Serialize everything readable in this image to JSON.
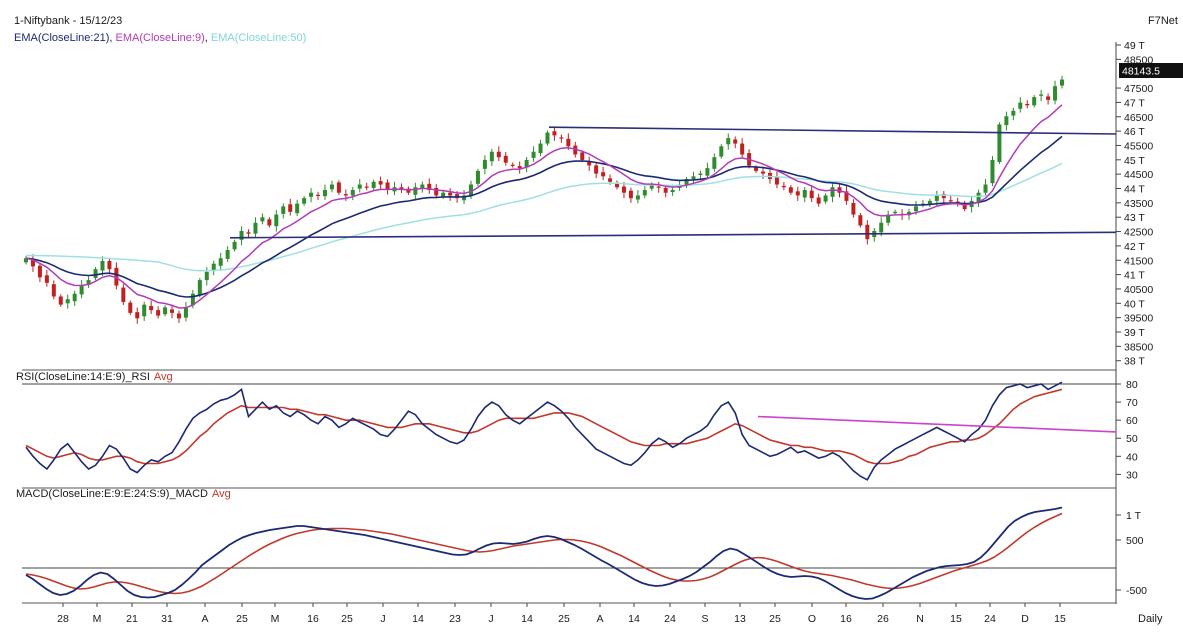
{
  "header": {
    "symbol": "1-Niftybank - 15/12/23",
    "brand": "F7Net",
    "legend": [
      {
        "text": "EMA(CloseLine:21)",
        "color": "#1c2a73"
      },
      {
        "text": ", ",
        "color": "#1a1a1a"
      },
      {
        "text": "EMA(CloseLine:9)",
        "color": "#b23bb8"
      },
      {
        "text": ", ",
        "color": "#1a1a1a"
      },
      {
        "text": "EMA(CloseLine:50)",
        "color": "#7fd6dc"
      }
    ]
  },
  "colors": {
    "up": "#2e8b2e",
    "down": "#c02020",
    "ema21": "#1c2a73",
    "ema9": "#b23bb8",
    "ema50": "#9fe0e4",
    "trendline": "#2b2f7a",
    "rsi": "#1c2a73",
    "rsi_avg": "#c0392b",
    "rsi_trend": "#cc44cc",
    "macd": "#1c2a73",
    "macd_avg": "#c0392b"
  },
  "chart_data": [
    {
      "type": "candlestick",
      "panel": "price",
      "yticks": [
        "49 T",
        "48500",
        "48143.5",
        "47500",
        "47 T",
        "46500",
        "46 T",
        "45500",
        "45 T",
        "44500",
        "44 T",
        "43500",
        "43 T",
        "42500",
        "42 T",
        "41500",
        "41 T",
        "40500",
        "40 T",
        "39500",
        "39 T",
        "38500",
        "38 T"
      ],
      "last_price": "48143.5",
      "ylim": [
        37800,
        49300
      ],
      "x_labels": [
        "28",
        "M",
        "21",
        "31",
        "A",
        "25",
        "M",
        "16",
        "25",
        "J",
        "14",
        "23",
        "J",
        "14",
        "25",
        "A",
        "14",
        "24",
        "S",
        "13",
        "25",
        "O",
        "16",
        "26",
        "N",
        "15",
        "24",
        "D",
        "15"
      ],
      "series_close": [
        41600,
        41300,
        40900,
        40700,
        40200,
        39900,
        40100,
        40300,
        40600,
        40800,
        41200,
        41500,
        41200,
        40600,
        40000,
        39600,
        39400,
        39900,
        39700,
        39500,
        39800,
        39600,
        39400,
        39800,
        40300,
        40800,
        41100,
        41400,
        41600,
        41900,
        42200,
        42600,
        42500,
        42900,
        43100,
        42800,
        43200,
        43500,
        43300,
        43600,
        43800,
        44000,
        43900,
        44100,
        44300,
        44000,
        43900,
        44100,
        44300,
        44200,
        44400,
        44300,
        44100,
        44200,
        44100,
        44000,
        44200,
        44300,
        44100,
        43900,
        44000,
        43900,
        43800,
        43900,
        44300,
        44800,
        45200,
        45500,
        45300,
        45100,
        45000,
        44900,
        45200,
        45500,
        45800,
        46200,
        46100,
        46000,
        45700,
        45400,
        45200,
        45000,
        44700,
        44600,
        44400,
        44200,
        44000,
        43800,
        43900,
        44100,
        44300,
        44200,
        44000,
        44100,
        44300,
        44500,
        44600,
        44700,
        44900,
        45300,
        45700,
        46000,
        45800,
        45400,
        45000,
        44800,
        44700,
        44500,
        44300,
        44200,
        44000,
        43900,
        44100,
        43800,
        43600,
        43900,
        44200,
        44000,
        43700,
        43200,
        42800,
        42300,
        42600,
        42900,
        43200,
        43300,
        43200,
        43300,
        43500,
        43600,
        43700,
        43900,
        43800,
        43700,
        43600,
        43400,
        43700,
        44000,
        44300,
        45200,
        46500,
        46800,
        47000,
        47300,
        47200,
        47500,
        47600,
        47400,
        47900,
        48143.5
      ],
      "ema_series": [
        "EMA(CloseLine:21)",
        "EMA(CloseLine:9)",
        "EMA(CloseLine:50)"
      ],
      "trendlines": [
        {
          "from": [
            "2023-07-25",
            46400
          ],
          "to": [
            "2023-12-15",
            46150
          ]
        },
        {
          "from": [
            "2023-04-05",
            42350
          ],
          "to": [
            "2023-12-15",
            42550
          ]
        }
      ]
    },
    {
      "type": "line",
      "panel": "rsi",
      "title": "RSI(CloseLine:14:E:9)_RSI",
      "avg_label": "Avg",
      "yticks": [
        "80",
        "70",
        "60",
        "50",
        "40",
        "30"
      ],
      "ylim": [
        25,
        84
      ],
      "series": [
        {
          "name": "RSI",
          "values": [
            45,
            40,
            36,
            33,
            38,
            44,
            47,
            42,
            37,
            33,
            35,
            40,
            46,
            44,
            39,
            33,
            31,
            35,
            38,
            37,
            40,
            42,
            48,
            55,
            61,
            64,
            66,
            69,
            71,
            72,
            74,
            77,
            62,
            66,
            70,
            66,
            68,
            64,
            62,
            65,
            63,
            60,
            58,
            62,
            60,
            56,
            58,
            61,
            59,
            57,
            55,
            52,
            51,
            55,
            60,
            65,
            63,
            58,
            55,
            52,
            50,
            48,
            47,
            49,
            55,
            62,
            67,
            70,
            68,
            63,
            60,
            58,
            61,
            64,
            67,
            70,
            68,
            65,
            61,
            56,
            52,
            48,
            44,
            42,
            40,
            38,
            36,
            35,
            38,
            42,
            47,
            50,
            48,
            45,
            47,
            50,
            52,
            54,
            57,
            63,
            68,
            70,
            64,
            52,
            46,
            44,
            42,
            40,
            41,
            43,
            45,
            42,
            43,
            41,
            39,
            40,
            42,
            40,
            36,
            32,
            29,
            27,
            34,
            38,
            41,
            44,
            46,
            48,
            50,
            52,
            54,
            56,
            54,
            52,
            50,
            48,
            52,
            55,
            60,
            68,
            74,
            78,
            79,
            80,
            78,
            79,
            80,
            77,
            79,
            81
          ]
        },
        {
          "name": "Avg",
          "values": [
            46,
            44,
            42,
            40,
            39,
            40,
            41,
            42,
            41,
            39,
            38,
            38,
            39,
            40,
            40,
            39,
            37,
            36,
            36,
            36,
            37,
            38,
            40,
            43,
            47,
            51,
            54,
            58,
            61,
            64,
            66,
            68,
            67,
            67,
            67,
            67,
            67,
            67,
            66,
            66,
            65,
            64,
            63,
            63,
            62,
            61,
            60,
            60,
            60,
            59,
            58,
            57,
            56,
            56,
            56,
            57,
            58,
            58,
            58,
            57,
            56,
            55,
            54,
            53,
            53,
            54,
            56,
            58,
            60,
            61,
            61,
            61,
            61,
            61,
            62,
            63,
            64,
            64,
            64,
            63,
            62,
            60,
            58,
            56,
            54,
            52,
            50,
            48,
            47,
            46,
            46,
            46,
            47,
            47,
            47,
            47,
            48,
            49,
            50,
            52,
            54,
            56,
            58,
            57,
            55,
            53,
            51,
            49,
            48,
            47,
            46,
            46,
            45,
            45,
            44,
            43,
            43,
            43,
            42,
            41,
            39,
            37,
            36,
            36,
            36,
            37,
            38,
            40,
            41,
            43,
            45,
            46,
            47,
            48,
            48,
            49,
            49,
            50,
            52,
            55,
            58,
            62,
            66,
            69,
            71,
            73,
            74,
            75,
            76,
            77
          ]
        }
      ],
      "trendline": {
        "from": [
          "2023-09-25",
          62
        ],
        "to": [
          "2023-12-15",
          53.5
        ]
      }
    },
    {
      "type": "line",
      "panel": "macd",
      "title": "MACD(CloseLine:E:9:E:24:S:9)_MACD",
      "avg_label": "Avg",
      "yticks": [
        "1 T",
        "500",
        "-500"
      ],
      "ylim": [
        -700,
        1300
      ],
      "series": [
        {
          "name": "MACD",
          "values": [
            -200,
            -280,
            -380,
            -480,
            -560,
            -600,
            -580,
            -520,
            -420,
            -300,
            -200,
            -150,
            -180,
            -280,
            -400,
            -520,
            -600,
            -640,
            -650,
            -640,
            -600,
            -560,
            -500,
            -400,
            -280,
            -150,
            0,
            100,
            200,
            300,
            400,
            480,
            550,
            600,
            640,
            670,
            700,
            720,
            740,
            760,
            780,
            780,
            760,
            740,
            720,
            700,
            680,
            660,
            640,
            620,
            600,
            570,
            540,
            510,
            480,
            450,
            420,
            390,
            360,
            330,
            300,
            270,
            240,
            210,
            200,
            210,
            260,
            330,
            390,
            430,
            440,
            430,
            420,
            440,
            470,
            520,
            560,
            580,
            560,
            520,
            460,
            400,
            330,
            250,
            170,
            90,
            20,
            -60,
            -140,
            -220,
            -300,
            -360,
            -400,
            -420,
            -410,
            -380,
            -330,
            -280,
            -220,
            -140,
            -40,
            60,
            180,
            280,
            330,
            300,
            220,
            140,
            50,
            -40,
            -120,
            -180,
            -220,
            -240,
            -230,
            -220,
            -230,
            -260,
            -320,
            -400,
            -480,
            -560,
            -620,
            -660,
            -680,
            -670,
            -620,
            -560,
            -480,
            -400,
            -320,
            -240,
            -180,
            -120,
            -80,
            -40,
            -20,
            -10,
            0,
            20,
            60,
            150,
            280,
            440,
            600,
            760,
            880,
            960,
            1020,
            1060,
            1080,
            1100,
            1120,
            1150
          ]
        },
        {
          "name": "Avg",
          "values": [
            -180,
            -200,
            -230,
            -270,
            -320,
            -370,
            -420,
            -460,
            -480,
            -470,
            -440,
            -400,
            -360,
            -340,
            -340,
            -360,
            -390,
            -430,
            -470,
            -510,
            -540,
            -560,
            -570,
            -560,
            -530,
            -480,
            -420,
            -340,
            -260,
            -170,
            -80,
            10,
            100,
            190,
            270,
            350,
            420,
            480,
            540,
            590,
            630,
            660,
            690,
            710,
            720,
            730,
            730,
            730,
            720,
            710,
            700,
            680,
            660,
            640,
            620,
            590,
            560,
            530,
            500,
            470,
            440,
            410,
            380,
            350,
            320,
            290,
            270,
            260,
            270,
            290,
            320,
            350,
            380,
            400,
            420,
            440,
            460,
            480,
            500,
            510,
            510,
            500,
            480,
            450,
            410,
            360,
            300,
            240,
            180,
            110,
            40,
            -30,
            -100,
            -160,
            -220,
            -270,
            -300,
            -320,
            -320,
            -310,
            -280,
            -240,
            -180,
            -110,
            -40,
            30,
            90,
            130,
            150,
            140,
            110,
            70,
            20,
            -30,
            -80,
            -120,
            -150,
            -170,
            -190,
            -210,
            -240,
            -270,
            -300,
            -340,
            -380,
            -410,
            -440,
            -460,
            -470,
            -460,
            -440,
            -410,
            -370,
            -320,
            -270,
            -220,
            -170,
            -120,
            -80,
            -40,
            0,
            40,
            90,
            160,
            250,
            350,
            460,
            570,
            670,
            760,
            840,
            910,
            970,
            1030
          ]
        }
      ]
    }
  ],
  "footer": {
    "period": "Daily"
  }
}
